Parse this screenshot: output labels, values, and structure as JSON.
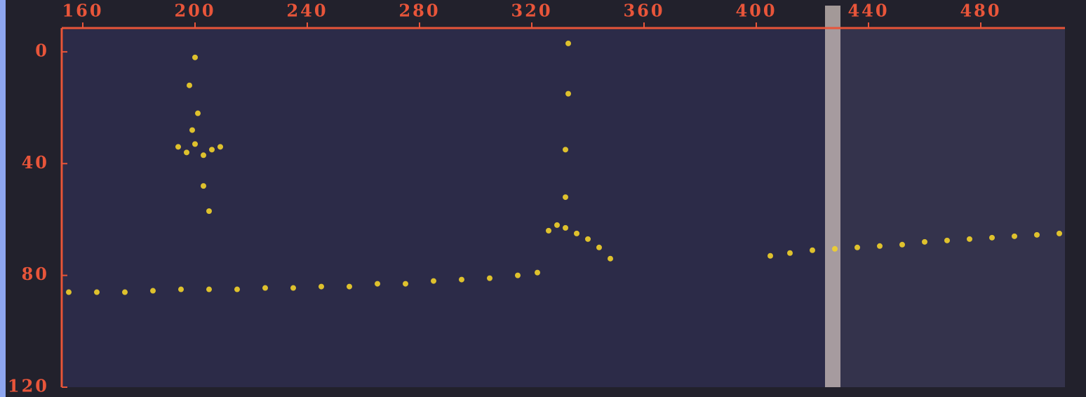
{
  "chart_data": {
    "type": "scatter",
    "color": "#f2d22a",
    "axis_color": "#e8553a",
    "x": [
      155,
      165,
      175,
      185,
      195,
      205,
      215,
      225,
      235,
      245,
      255,
      265,
      275,
      285,
      295,
      305,
      315,
      322,
      326,
      329,
      332,
      336,
      340,
      344,
      348,
      405,
      412,
      420,
      428,
      436,
      444,
      452,
      460,
      468,
      476,
      484,
      492,
      500,
      508,
      194,
      197,
      200,
      203,
      206,
      209,
      199,
      201,
      198,
      200,
      203,
      205,
      333,
      333,
      332,
      332
    ],
    "y": [
      86,
      86,
      86,
      85.5,
      85,
      85,
      85,
      84.5,
      84.5,
      84,
      84,
      83,
      83,
      82,
      81.5,
      81,
      80,
      79,
      64,
      62,
      63,
      65,
      67,
      70,
      74,
      73,
      72,
      71,
      70.5,
      70,
      69.5,
      69,
      68,
      67.5,
      67,
      66.5,
      66,
      65.5,
      65,
      34,
      36,
      33,
      37,
      35,
      34,
      28,
      22,
      12,
      2,
      48,
      57,
      -3,
      15,
      35,
      52
    ],
    "xlim": [
      153,
      510
    ],
    "ylim": [
      -8,
      120
    ],
    "y_inverted": true,
    "xticks": [
      160,
      200,
      240,
      280,
      320,
      360,
      400,
      440,
      480
    ],
    "yticks": [
      0,
      40,
      80,
      120
    ]
  }
}
